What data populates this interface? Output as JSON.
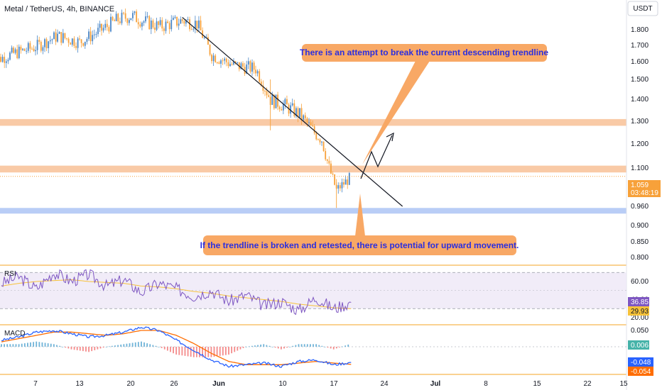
{
  "header": {
    "title": "Metal / TetherUS, 4h, BINANCE",
    "currency": "USDT"
  },
  "colors": {
    "up": "#4a87c8",
    "down": "#f7a13a",
    "resistance_zone": "#f9caa6",
    "support_zone": "#b9cdf6",
    "callout": "#f8a865",
    "callout_text": "#2a2ee0",
    "rsi_line": "#7e57c2",
    "rsi_ma": "#f7c23a",
    "rsi_band": "#ede7f6",
    "macd_line": "#2962ff",
    "signal_line": "#ff6d00",
    "hist_pos": "#6fb3d8",
    "hist_neg": "#f48b8b",
    "pane_separator": "#f5a623",
    "price_badge": "#f7a13a"
  },
  "callouts": {
    "top": "There is an attempt to break the current descending trendline",
    "bottom": "If the trendline is broken and retested, there is potential for upward movement."
  },
  "price_badge": {
    "price": "1.059",
    "countdown": "03:48:19"
  },
  "rsi": {
    "title": "RSI",
    "value": "36.85",
    "ma_value": "29.93",
    "ticks": [
      "60.00",
      "40.00",
      "20.00"
    ]
  },
  "macd": {
    "title": "MACD",
    "hist_value": "0.006",
    "macd_value": "-0.048",
    "signal_value": "-0.054",
    "ticks": [
      "0.050",
      "-0.050"
    ]
  },
  "chart_data": {
    "type": "candlestick",
    "title": "Metal / TetherUS, 4h, BINANCE",
    "y_unit": "USDT",
    "y_ticks": [
      "1.800",
      "1.700",
      "1.600",
      "1.500",
      "1.400",
      "1.300",
      "1.200",
      "1.100",
      "1.000",
      "0.960",
      "0.900",
      "0.850",
      "0.800"
    ],
    "x_ticks": [
      "7",
      "13",
      "20",
      "26",
      "Jun",
      "10",
      "17",
      "24",
      "Jul",
      "8",
      "15",
      "22",
      "15"
    ],
    "last_price": 1.059,
    "zones": [
      {
        "type": "resistance",
        "from": 1.28,
        "to": 1.31
      },
      {
        "type": "resistance",
        "from": 1.08,
        "to": 1.11
      },
      {
        "type": "support",
        "from": 0.94,
        "to": 0.955
      }
    ],
    "trendline": {
      "start": {
        "date": "May 27",
        "price": 1.88
      },
      "end": {
        "date": "Jun 26",
        "price": 0.96
      }
    },
    "price_path": [
      {
        "date": "May 1",
        "price": 1.6
      },
      {
        "date": "May 4",
        "price": 1.65
      },
      {
        "date": "May 7",
        "price": 1.69
      },
      {
        "date": "May 10",
        "price": 1.76
      },
      {
        "date": "May 13",
        "price": 1.72
      },
      {
        "date": "May 16",
        "price": 1.8
      },
      {
        "date": "May 18",
        "price": 1.86
      },
      {
        "date": "May 20",
        "price": 1.89
      },
      {
        "date": "May 22",
        "price": 1.85
      },
      {
        "date": "May 24",
        "price": 1.82
      },
      {
        "date": "May 27",
        "price": 1.86
      },
      {
        "date": "May 29",
        "price": 1.84
      },
      {
        "date": "May 31",
        "price": 1.64
      },
      {
        "date": "Jun 3",
        "price": 1.58
      },
      {
        "date": "Jun 6",
        "price": 1.56
      },
      {
        "date": "Jun 8",
        "price": 1.4
      },
      {
        "date": "Jun 10",
        "price": 1.37
      },
      {
        "date": "Jun 12",
        "price": 1.33
      },
      {
        "date": "Jun 14",
        "price": 1.25
      },
      {
        "date": "Jun 15",
        "price": 1.22
      },
      {
        "date": "Jun 16",
        "price": 1.1
      },
      {
        "date": "Jun 17",
        "price": 1.0
      },
      {
        "date": "Jun 18",
        "price": 1.03
      },
      {
        "date": "Jun 19",
        "price": 1.059
      }
    ],
    "rsi_path": [
      58,
      65,
      52,
      70,
      60,
      68,
      55,
      62,
      48,
      58,
      52,
      44,
      50,
      38,
      45,
      33,
      38,
      28,
      42,
      30,
      36.85
    ],
    "rsi_ma_path": [
      55,
      58,
      60,
      61,
      62,
      60,
      59,
      58,
      55,
      54,
      52,
      49,
      47,
      44,
      42,
      40,
      38,
      35,
      33,
      31,
      29.93
    ],
    "macd_path": [
      0.02,
      0.03,
      0.045,
      0.05,
      0.04,
      0.03,
      0.035,
      0.045,
      0.06,
      0.05,
      0.02,
      -0.01,
      -0.04,
      -0.06,
      -0.055,
      -0.05,
      -0.06,
      -0.045,
      -0.04,
      -0.055,
      -0.048
    ],
    "signal_path": [
      0.015,
      0.025,
      0.035,
      0.045,
      0.045,
      0.04,
      0.035,
      0.04,
      0.05,
      0.05,
      0.035,
      0.01,
      -0.02,
      -0.045,
      -0.055,
      -0.055,
      -0.055,
      -0.05,
      -0.045,
      -0.05,
      -0.054
    ]
  }
}
